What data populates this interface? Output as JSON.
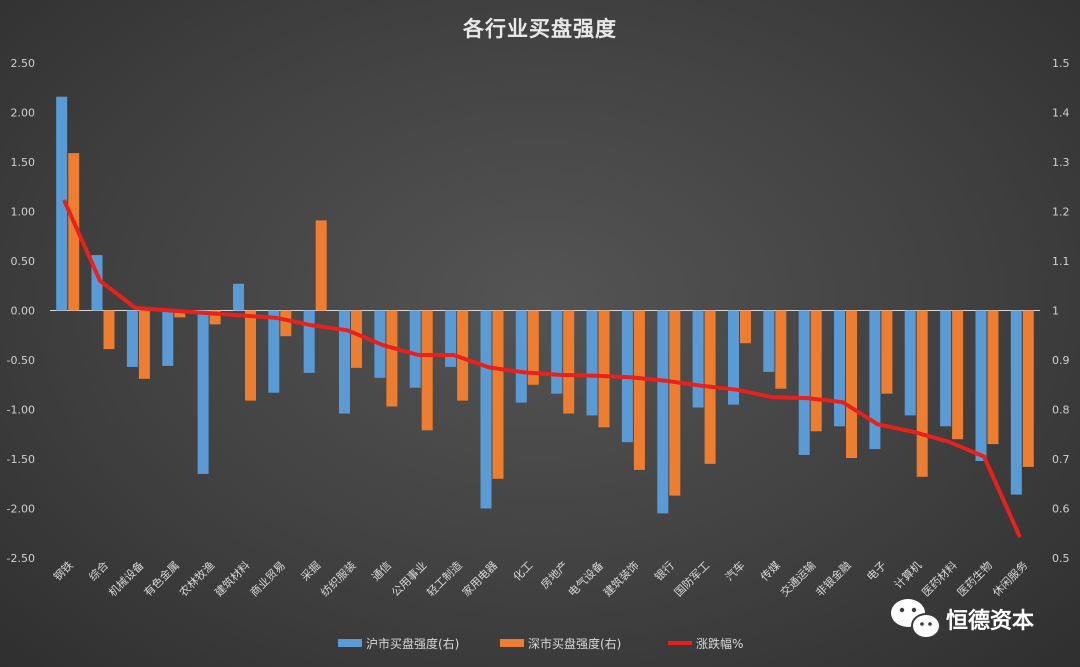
{
  "chart_data": {
    "type": "bar",
    "title": "各行业买盘强度",
    "categories": [
      "钢铁",
      "综合",
      "机械设备",
      "有色金属",
      "农林牧渔",
      "建筑材料",
      "商业贸易",
      "采掘",
      "纺织服装",
      "通信",
      "公用事业",
      "轻工制造",
      "家用电器",
      "化工",
      "房地产",
      "电气设备",
      "建筑装饰",
      "银行",
      "国防军工",
      "汽车",
      "传媒",
      "交通运输",
      "非银金融",
      "电子",
      "计算机",
      "医药材料",
      "医药生物",
      "休闲服务"
    ],
    "series": [
      {
        "name": "沪市买盘强度(右)",
        "axis": "left",
        "color": "#5b9bd5",
        "values": [
          2.16,
          0.56,
          -0.57,
          -0.56,
          -1.65,
          0.27,
          -0.83,
          -0.63,
          -1.04,
          -0.68,
          -0.78,
          -0.57,
          -2.0,
          -0.93,
          -0.84,
          -1.06,
          -1.33,
          -2.05,
          -0.98,
          -0.95,
          -0.62,
          -1.46,
          -1.17,
          -1.4,
          -1.06,
          -1.17,
          -1.52,
          -1.86
        ]
      },
      {
        "name": "深市买盘强度(右)",
        "axis": "left",
        "color": "#ed7d31",
        "values": [
          1.59,
          -0.39,
          -0.69,
          -0.07,
          -0.14,
          -0.91,
          -0.26,
          0.91,
          -0.58,
          -0.97,
          -1.21,
          -0.91,
          -1.7,
          -0.75,
          -1.04,
          -1.18,
          -1.61,
          -1.87,
          -1.55,
          -0.33,
          -0.79,
          -1.22,
          -1.49,
          -0.84,
          -1.68,
          -1.3,
          -1.35,
          -1.58
        ]
      },
      {
        "name": "涨跌幅%",
        "axis": "right",
        "type": "line",
        "color": "#e8211d",
        "values": [
          1.22,
          1.06,
          1.005,
          1.0,
          0.995,
          0.99,
          0.985,
          0.97,
          0.96,
          0.93,
          0.91,
          0.91,
          0.885,
          0.875,
          0.87,
          0.868,
          0.865,
          0.858,
          0.848,
          0.84,
          0.825,
          0.823,
          0.815,
          0.77,
          0.755,
          0.735,
          0.705,
          0.545
        ]
      }
    ],
    "ylim_left": [
      -2.5,
      2.5
    ],
    "yticks_left": [
      "2.50",
      "2.00",
      "1.50",
      "1.00",
      "0.50",
      "0.00",
      "-0.50",
      "-1.00",
      "-1.50",
      "-2.00",
      "-2.50"
    ],
    "ylim_right": [
      0.5,
      1.5
    ],
    "yticks_right": [
      "1.5",
      "1.4",
      "1.3",
      "1.2",
      "1.1",
      "1",
      "0.9",
      "0.8",
      "0.7",
      "0.6",
      "0.5"
    ],
    "grid": false,
    "legend_position": "bottom"
  },
  "watermark": {
    "text": "恒德资本",
    "icon": "wechat-icon"
  }
}
